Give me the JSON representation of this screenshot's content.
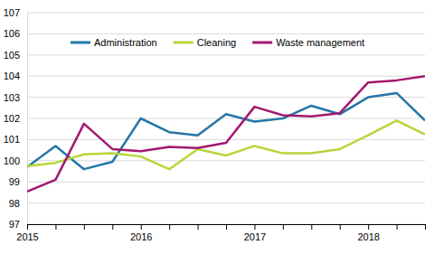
{
  "chart_data": {
    "type": "line",
    "categories": [
      "2015",
      null,
      null,
      null,
      "2016",
      null,
      null,
      null,
      "2017",
      null,
      null,
      null,
      "2018",
      null,
      null
    ],
    "series": [
      {
        "name": "Administration",
        "color": "#2577a8",
        "values": [
          99.7,
          100.7,
          99.6,
          99.95,
          102.0,
          101.35,
          101.2,
          102.2,
          101.85,
          102.0,
          102.6,
          102.2,
          103.0,
          103.2,
          101.9
        ]
      },
      {
        "name": "Cleaning",
        "color": "#b7d63a",
        "values": [
          99.75,
          99.9,
          100.3,
          100.35,
          100.2,
          99.6,
          100.55,
          100.25,
          100.7,
          100.35,
          100.35,
          100.55,
          101.2,
          101.9,
          101.25
        ]
      },
      {
        "name": "Waste management",
        "color": "#a2186f",
        "values": [
          98.55,
          99.1,
          101.75,
          100.55,
          100.45,
          100.65,
          100.6,
          100.85,
          102.55,
          102.15,
          102.1,
          102.25,
          103.7,
          103.8,
          104.0
        ]
      }
    ],
    "ylim": [
      97,
      107
    ],
    "yticks": [
      97,
      98,
      99,
      100,
      101,
      102,
      103,
      104,
      105,
      106,
      107
    ],
    "grid": true,
    "legend": "top"
  }
}
